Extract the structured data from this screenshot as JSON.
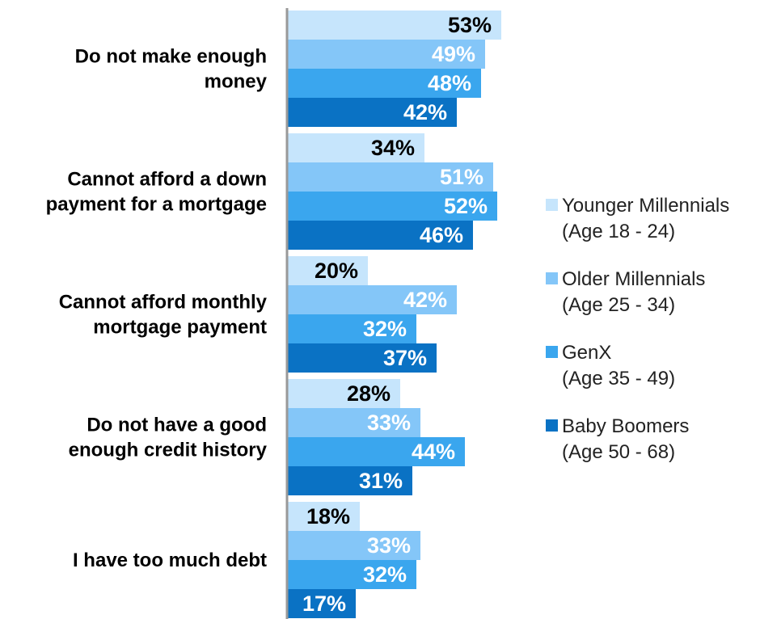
{
  "chart_data": {
    "type": "bar",
    "orientation": "horizontal",
    "categories": [
      [
        "Do not make enough",
        "money"
      ],
      [
        "Cannot afford a down",
        "payment for a mortgage"
      ],
      [
        "Cannot afford monthly",
        "mortgage payment"
      ],
      [
        "Do not have a good",
        "enough credit history"
      ],
      [
        "I have too much debt"
      ]
    ],
    "series": [
      {
        "name": "Younger Millennials",
        "age": "(Age 18 - 24)",
        "color": "#c6e5fc",
        "label_color": "#000000",
        "values": [
          53,
          34,
          20,
          28,
          18
        ],
        "labels": [
          "53%",
          "34%",
          "20%",
          "28%",
          "18%"
        ]
      },
      {
        "name": "Older Millennials",
        "age": "(Age 25 - 34)",
        "color": "#84c6f8",
        "label_color": "#ffffff",
        "values": [
          49,
          51,
          42,
          33,
          33
        ],
        "labels": [
          "49%",
          "51%",
          "42%",
          "33%",
          "33%"
        ]
      },
      {
        "name": "GenX",
        "age": "(Age 35 - 49)",
        "color": "#3aa6ee",
        "label_color": "#ffffff",
        "values": [
          48,
          52,
          32,
          44,
          32
        ],
        "labels": [
          "48%",
          "52%",
          "32%",
          "44%",
          "32%"
        ]
      },
      {
        "name": "Baby Boomers",
        "age": "(Age 50 - 68)",
        "color": "#0a72c4",
        "label_color": "#ffffff",
        "values": [
          42,
          46,
          37,
          31,
          17
        ],
        "labels": [
          "42%",
          "46%",
          "37%",
          "31%",
          "17%"
        ]
      }
    ],
    "xlim": [
      0,
      100
    ],
    "grid": false,
    "legend_position": "right",
    "axis_color": "#999999"
  }
}
